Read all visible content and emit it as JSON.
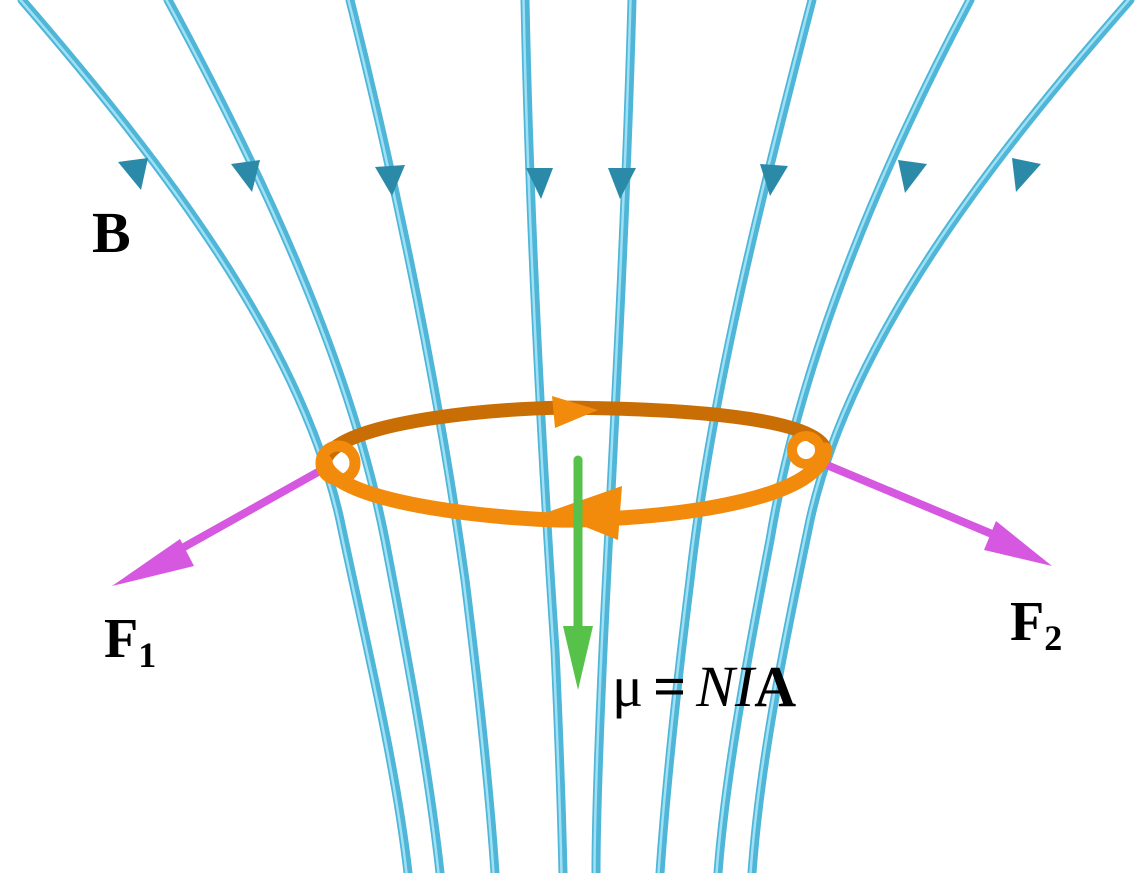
{
  "labels": {
    "field": "B",
    "force_left": {
      "symbol": "F",
      "subscript": "1"
    },
    "force_right": {
      "symbol": "F",
      "subscript": "2"
    },
    "moment": {
      "mu": "μ",
      "equals": "=",
      "N": "N",
      "I": "I",
      "A": "A"
    }
  },
  "colors": {
    "field_line": "#4fb6d8",
    "field_line_dark": "#2f8fb0",
    "field_arrow": "#2b8aa8",
    "loop": "#f28b0c",
    "loop_dark": "#c96d05",
    "force_arrow": "#d657e0",
    "moment_arrow": "#56c24a",
    "text": "#000000"
  }
}
